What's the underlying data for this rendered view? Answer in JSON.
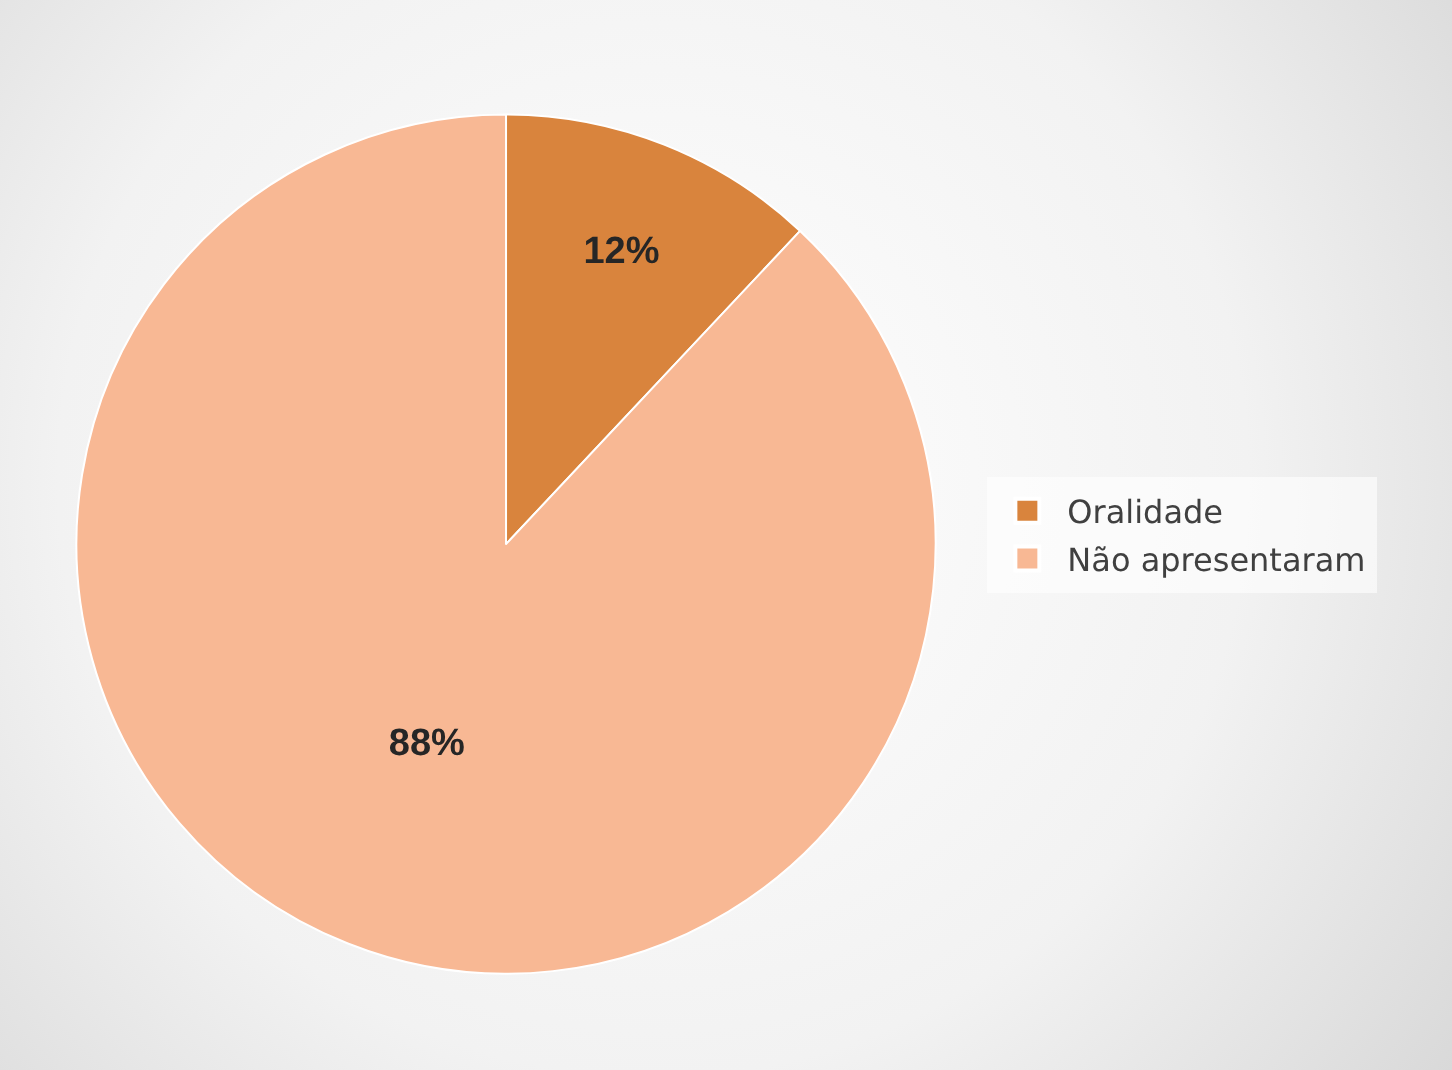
{
  "chart_data": {
    "type": "pie",
    "categories": [
      "Oralidade",
      "Não apresentaram"
    ],
    "values": [
      12,
      88
    ],
    "colors": [
      "#d9843d",
      "#f8b894"
    ],
    "value_labels": [
      "12%",
      "88%"
    ],
    "legend": "right"
  }
}
